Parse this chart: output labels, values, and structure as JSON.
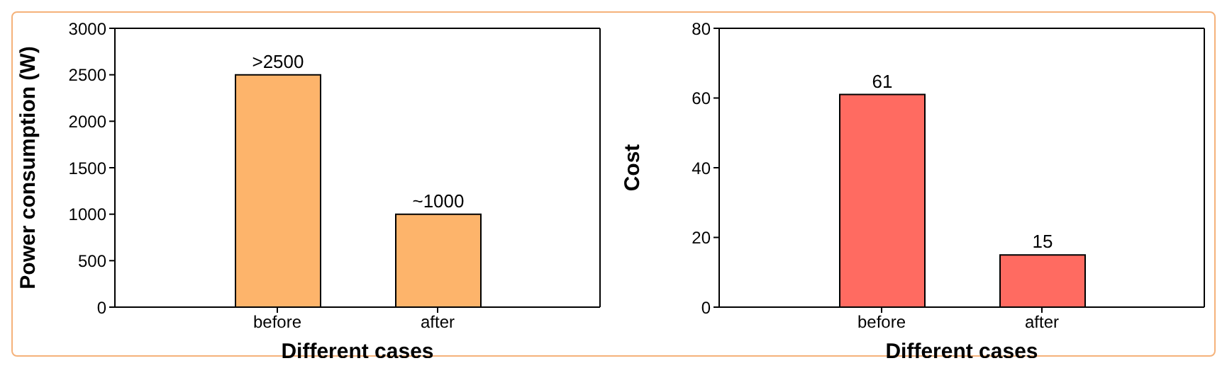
{
  "chart_data": [
    {
      "type": "bar",
      "categories": [
        "before",
        "after"
      ],
      "values": [
        2500,
        1000
      ],
      "color": "#fdb46b",
      "value_labels": [
        ">2500",
        "~1000"
      ],
      "xlabel": "Different cases",
      "ylabel": "Power consumption (W)",
      "ylim": [
        0,
        3000
      ],
      "yticks": [
        0,
        500,
        1000,
        1500,
        2000,
        2500,
        3000
      ],
      "grid": false,
      "legend": false
    },
    {
      "type": "bar",
      "categories": [
        "before",
        "after"
      ],
      "values": [
        61,
        15
      ],
      "color": "#ff6b61",
      "data_labels": true,
      "xlabel": "Different cases",
      "ylabel": "Cost",
      "ylim": [
        0,
        80
      ],
      "yticks": [
        0,
        20,
        40,
        60,
        80
      ],
      "grid": false,
      "legend": false
    }
  ]
}
